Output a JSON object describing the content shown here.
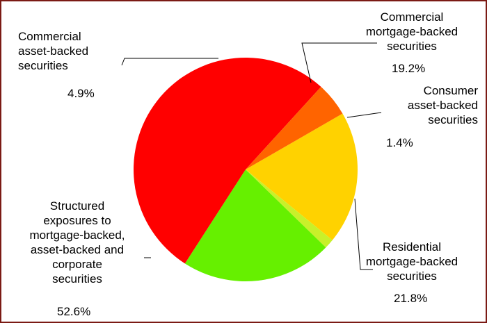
{
  "chart_data": {
    "type": "pie",
    "title": "",
    "slices": [
      {
        "label_lines": [
          "Commercial",
          "mortgage-backed",
          "securities"
        ],
        "value": 19.2,
        "pct_label": "19.2%",
        "color": "#ffd200"
      },
      {
        "label_lines": [
          "Consumer",
          "asset-backed",
          "securities"
        ],
        "value": 1.4,
        "pct_label": "1.4%",
        "color": "#c8f02a"
      },
      {
        "label_lines": [
          "Residential",
          "mortgage-backed",
          "securities"
        ],
        "value": 21.8,
        "pct_label": "21.8%",
        "color": "#66f000"
      },
      {
        "label_lines": [
          "Structured",
          "exposures to",
          "mortgage-backed,",
          "asset-backed and",
          "corporate",
          "securities"
        ],
        "value": 52.6,
        "pct_label": "52.6%",
        "color": "#ff0000"
      },
      {
        "label_lines": [
          "Commercial",
          "asset-backed",
          "securities"
        ],
        "value": 4.9,
        "pct_label": "4.9%",
        "color": "#ff6400"
      }
    ],
    "start_angle_deg": 60,
    "direction": "clockwise",
    "legend": "none (callout labels)"
  },
  "frame": {
    "border_color": "#7b1a14"
  }
}
